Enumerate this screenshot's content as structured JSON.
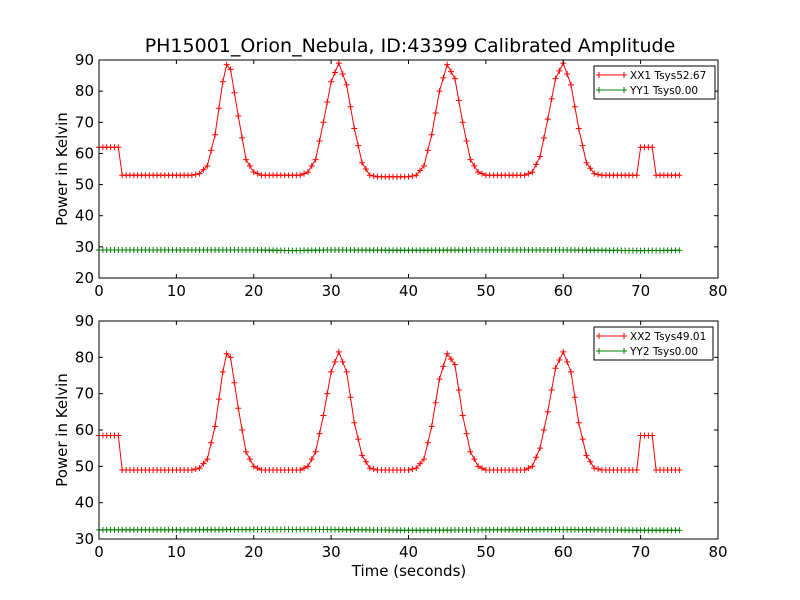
{
  "figure": {
    "title": "PH15001_Orion_Nebula, ID:43399 Calibrated Amplitude",
    "xlabel": "Time (seconds)"
  },
  "chart_data": [
    {
      "type": "line",
      "title": "PH15001_Orion_Nebula, ID:43399 Calibrated Amplitude",
      "xlabel": "",
      "ylabel": "Power in Kelvin",
      "xlim": [
        0,
        80
      ],
      "ylim": [
        20,
        90
      ],
      "xticks": [
        0,
        10,
        20,
        30,
        40,
        50,
        60,
        70,
        80
      ],
      "yticks": [
        20,
        30,
        40,
        50,
        60,
        70,
        80,
        90
      ],
      "legend_position": "top-right",
      "grid": false,
      "sample_interval_s": 0.5,
      "series": [
        {
          "name": "XX1 Tsys52.67",
          "color": "#ff0000",
          "marker": "plus",
          "points": [
            [
              0,
              62
            ],
            [
              2.5,
              62
            ],
            [
              3,
              53
            ],
            [
              12,
              53
            ],
            [
              13,
              53.5
            ],
            [
              14,
              56
            ],
            [
              15,
              66
            ],
            [
              16,
              83
            ],
            [
              16.5,
              88.5
            ],
            [
              17,
              87
            ],
            [
              18,
              72
            ],
            [
              19,
              58
            ],
            [
              20,
              54
            ],
            [
              21,
              53
            ],
            [
              26,
              53
            ],
            [
              27,
              54
            ],
            [
              28,
              58
            ],
            [
              29,
              70
            ],
            [
              30,
              83
            ],
            [
              31,
              89
            ],
            [
              32,
              82
            ],
            [
              33,
              68
            ],
            [
              34,
              57
            ],
            [
              35,
              53
            ],
            [
              36,
              52.5
            ],
            [
              40,
              52.5
            ],
            [
              41,
              53
            ],
            [
              42,
              56
            ],
            [
              43,
              66
            ],
            [
              44,
              80
            ],
            [
              45,
              88.5
            ],
            [
              46,
              84
            ],
            [
              47,
              70
            ],
            [
              48,
              58
            ],
            [
              49,
              54
            ],
            [
              50,
              53
            ],
            [
              55,
              53
            ],
            [
              56,
              54
            ],
            [
              57,
              59
            ],
            [
              58,
              71
            ],
            [
              59,
              84
            ],
            [
              60,
              89
            ],
            [
              61,
              82
            ],
            [
              62,
              68
            ],
            [
              63,
              57
            ],
            [
              64,
              53.5
            ],
            [
              65,
              53
            ],
            [
              69.5,
              53
            ],
            [
              70,
              62
            ],
            [
              71.5,
              62
            ],
            [
              72,
              53
            ],
            [
              75,
              53
            ]
          ]
        },
        {
          "name": "YY1 Tsys0.00",
          "color": "#008000",
          "marker": "plus",
          "points": [
            [
              0,
              29
            ],
            [
              10,
              29
            ],
            [
              20,
              29
            ],
            [
              25,
              28.8
            ],
            [
              30,
              29
            ],
            [
              40,
              28.9
            ],
            [
              50,
              29
            ],
            [
              60,
              29
            ],
            [
              70,
              28.8
            ],
            [
              75,
              28.9
            ]
          ]
        }
      ]
    },
    {
      "type": "line",
      "title": "",
      "xlabel": "Time (seconds)",
      "ylabel": "Power in Kelvin",
      "xlim": [
        0,
        80
      ],
      "ylim": [
        30,
        90
      ],
      "xticks": [
        0,
        10,
        20,
        30,
        40,
        50,
        60,
        70,
        80
      ],
      "yticks": [
        30,
        40,
        50,
        60,
        70,
        80,
        90
      ],
      "legend_position": "top-right",
      "grid": false,
      "sample_interval_s": 0.5,
      "series": [
        {
          "name": "XX2 Tsys49.01",
          "color": "#ff0000",
          "marker": "plus",
          "points": [
            [
              0,
              58.5
            ],
            [
              2.5,
              58.5
            ],
            [
              3,
              49
            ],
            [
              12,
              49
            ],
            [
              13,
              49.5
            ],
            [
              14,
              52
            ],
            [
              15,
              61
            ],
            [
              16,
              76
            ],
            [
              16.5,
              81
            ],
            [
              17,
              80
            ],
            [
              18,
              66
            ],
            [
              19,
              54
            ],
            [
              20,
              50
            ],
            [
              21,
              49
            ],
            [
              26,
              49
            ],
            [
              27,
              50
            ],
            [
              28,
              54
            ],
            [
              29,
              64
            ],
            [
              30,
              76
            ],
            [
              31,
              81.5
            ],
            [
              32,
              76
            ],
            [
              33,
              62
            ],
            [
              34,
              53
            ],
            [
              35,
              49.5
            ],
            [
              36,
              49
            ],
            [
              40,
              49
            ],
            [
              41,
              49.5
            ],
            [
              42,
              52
            ],
            [
              43,
              61
            ],
            [
              44,
              74
            ],
            [
              45,
              81
            ],
            [
              46,
              78
            ],
            [
              47,
              64
            ],
            [
              48,
              54
            ],
            [
              49,
              50
            ],
            [
              50,
              49
            ],
            [
              55,
              49
            ],
            [
              56,
              50
            ],
            [
              57,
              55
            ],
            [
              58,
              65
            ],
            [
              59,
              77
            ],
            [
              60,
              81.5
            ],
            [
              61,
              76
            ],
            [
              62,
              62
            ],
            [
              63,
              53
            ],
            [
              64,
              49.5
            ],
            [
              65,
              49
            ],
            [
              69.5,
              49
            ],
            [
              70,
              58.5
            ],
            [
              71.5,
              58.5
            ],
            [
              72,
              49
            ],
            [
              75,
              49
            ]
          ]
        },
        {
          "name": "YY2 Tsys0.00",
          "color": "#008000",
          "marker": "plus",
          "points": [
            [
              0,
              32.5
            ],
            [
              10,
              32.5
            ],
            [
              20,
              32.6
            ],
            [
              30,
              32.6
            ],
            [
              40,
              32.4
            ],
            [
              50,
              32.5
            ],
            [
              60,
              32.6
            ],
            [
              70,
              32.4
            ],
            [
              75,
              32.4
            ]
          ]
        }
      ]
    }
  ]
}
